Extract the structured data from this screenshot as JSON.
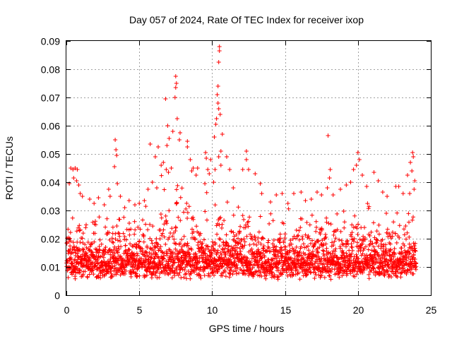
{
  "chart_data": {
    "type": "scatter",
    "title": "Day 057 of 2024, Rate Of TEC Index for receiver ixop",
    "xlabel": "GPS time / hours",
    "ylabel": "ROTI / TECUs",
    "xlim": [
      0,
      25
    ],
    "ylim": [
      0,
      0.09
    ],
    "xticks": [
      0,
      5,
      10,
      15,
      20,
      25
    ],
    "xtick_labels": [
      "0",
      "5",
      "10",
      "15",
      "20",
      "25"
    ],
    "yticks": [
      0,
      0.01,
      0.02,
      0.03,
      0.04,
      0.05,
      0.06,
      0.07,
      0.08,
      0.09
    ],
    "ytick_labels": [
      "0",
      "0.01",
      "0.02",
      "0.03",
      "0.04",
      "0.05",
      "0.06",
      "0.07",
      "0.08",
      "0.09"
    ],
    "grid": true,
    "marker": "+",
    "color": "#ff0000",
    "data_range": [
      0,
      24
    ],
    "series": [
      {
        "name": "ROTI",
        "points": [
          [
            10.5,
            0.088
          ],
          [
            10.5,
            0.0865
          ],
          [
            10.45,
            0.0825
          ],
          [
            10.4,
            0.074
          ],
          [
            10.35,
            0.071
          ],
          [
            10.4,
            0.068
          ],
          [
            10.45,
            0.066
          ],
          [
            10.3,
            0.0625
          ],
          [
            10.25,
            0.0605
          ],
          [
            10.55,
            0.064
          ],
          [
            10.7,
            0.057
          ],
          [
            10.6,
            0.051
          ],
          [
            10.15,
            0.056
          ],
          [
            10.45,
            0.049
          ],
          [
            10.6,
            0.046
          ],
          [
            10.2,
            0.0445
          ],
          [
            10.1,
            0.04
          ],
          [
            7.5,
            0.0775
          ],
          [
            7.55,
            0.075
          ],
          [
            7.5,
            0.0735
          ],
          [
            7.45,
            0.07
          ],
          [
            6.8,
            0.0695
          ],
          [
            7.6,
            0.0625
          ],
          [
            6.95,
            0.06
          ],
          [
            7.3,
            0.058
          ],
          [
            7.8,
            0.0575
          ],
          [
            7.75,
            0.055
          ],
          [
            7.05,
            0.0555
          ],
          [
            6.9,
            0.053
          ],
          [
            6.3,
            0.0525
          ],
          [
            6.1,
            0.049
          ],
          [
            5.75,
            0.0535
          ],
          [
            6.5,
            0.046
          ],
          [
            6.65,
            0.047
          ],
          [
            6.85,
            0.0445
          ],
          [
            7.2,
            0.045
          ],
          [
            7.0,
            0.0435
          ],
          [
            8.3,
            0.0545
          ],
          [
            8.3,
            0.0525
          ],
          [
            8.5,
            0.048
          ],
          [
            8.6,
            0.044
          ],
          [
            8.7,
            0.045
          ],
          [
            8.9,
            0.0425
          ],
          [
            9.0,
            0.045
          ],
          [
            9.55,
            0.0505
          ],
          [
            9.6,
            0.0485
          ],
          [
            9.9,
            0.048
          ],
          [
            9.7,
            0.0445
          ],
          [
            9.8,
            0.043
          ],
          [
            9.5,
            0.0395
          ],
          [
            11.0,
            0.049
          ],
          [
            11.2,
            0.0445
          ],
          [
            11.45,
            0.038
          ],
          [
            12.1,
            0.0445
          ],
          [
            12.35,
            0.051
          ],
          [
            12.35,
            0.048
          ],
          [
            12.5,
            0.0445
          ],
          [
            12.95,
            0.043
          ],
          [
            13.3,
            0.0395
          ],
          [
            13.4,
            0.036
          ],
          [
            3.35,
            0.055
          ],
          [
            3.4,
            0.0515
          ],
          [
            3.45,
            0.0495
          ],
          [
            3.3,
            0.0455
          ],
          [
            3.5,
            0.0395
          ],
          [
            3.7,
            0.035
          ],
          [
            0.3,
            0.045
          ],
          [
            0.45,
            0.0445
          ],
          [
            0.6,
            0.045
          ],
          [
            0.75,
            0.0445
          ],
          [
            0.5,
            0.0415
          ],
          [
            0.7,
            0.0405
          ],
          [
            0.85,
            0.039
          ],
          [
            0.95,
            0.036
          ],
          [
            0.2,
            0.0395
          ],
          [
            1.1,
            0.035
          ],
          [
            1.6,
            0.034
          ],
          [
            1.9,
            0.0325
          ],
          [
            2.2,
            0.0345
          ],
          [
            2.6,
            0.032
          ],
          [
            2.9,
            0.0375
          ],
          [
            3.0,
            0.035
          ],
          [
            4.0,
            0.031
          ],
          [
            4.3,
            0.0335
          ],
          [
            4.7,
            0.032
          ],
          [
            5.0,
            0.0325
          ],
          [
            5.35,
            0.0335
          ],
          [
            5.6,
            0.0375
          ],
          [
            5.9,
            0.04
          ],
          [
            6.2,
            0.038
          ],
          [
            14.0,
            0.033
          ],
          [
            14.4,
            0.0355
          ],
          [
            14.8,
            0.036
          ],
          [
            15.2,
            0.0325
          ],
          [
            15.6,
            0.036
          ],
          [
            16.1,
            0.0365
          ],
          [
            16.4,
            0.0335
          ],
          [
            16.8,
            0.034
          ],
          [
            17.2,
            0.0365
          ],
          [
            17.5,
            0.0355
          ],
          [
            17.95,
            0.0565
          ],
          [
            18.1,
            0.0445
          ],
          [
            18.05,
            0.0415
          ],
          [
            17.9,
            0.038
          ],
          [
            18.3,
            0.0355
          ],
          [
            18.8,
            0.0375
          ],
          [
            19.2,
            0.039
          ],
          [
            19.5,
            0.04
          ],
          [
            19.7,
            0.0445
          ],
          [
            19.9,
            0.046
          ],
          [
            20.0,
            0.0505
          ],
          [
            20.1,
            0.048
          ],
          [
            20.3,
            0.0425
          ],
          [
            20.6,
            0.0385
          ],
          [
            21.1,
            0.0435
          ],
          [
            21.4,
            0.0405
          ],
          [
            21.7,
            0.0365
          ],
          [
            22.0,
            0.035
          ],
          [
            22.6,
            0.0385
          ],
          [
            22.8,
            0.0385
          ],
          [
            23.1,
            0.036
          ],
          [
            23.4,
            0.0425
          ],
          [
            23.6,
            0.047
          ],
          [
            23.75,
            0.0505
          ],
          [
            23.8,
            0.049
          ],
          [
            23.7,
            0.044
          ],
          [
            23.9,
            0.0405
          ],
          [
            23.85,
            0.0375
          ],
          [
            23.55,
            0.036
          ]
        ]
      }
    ]
  }
}
